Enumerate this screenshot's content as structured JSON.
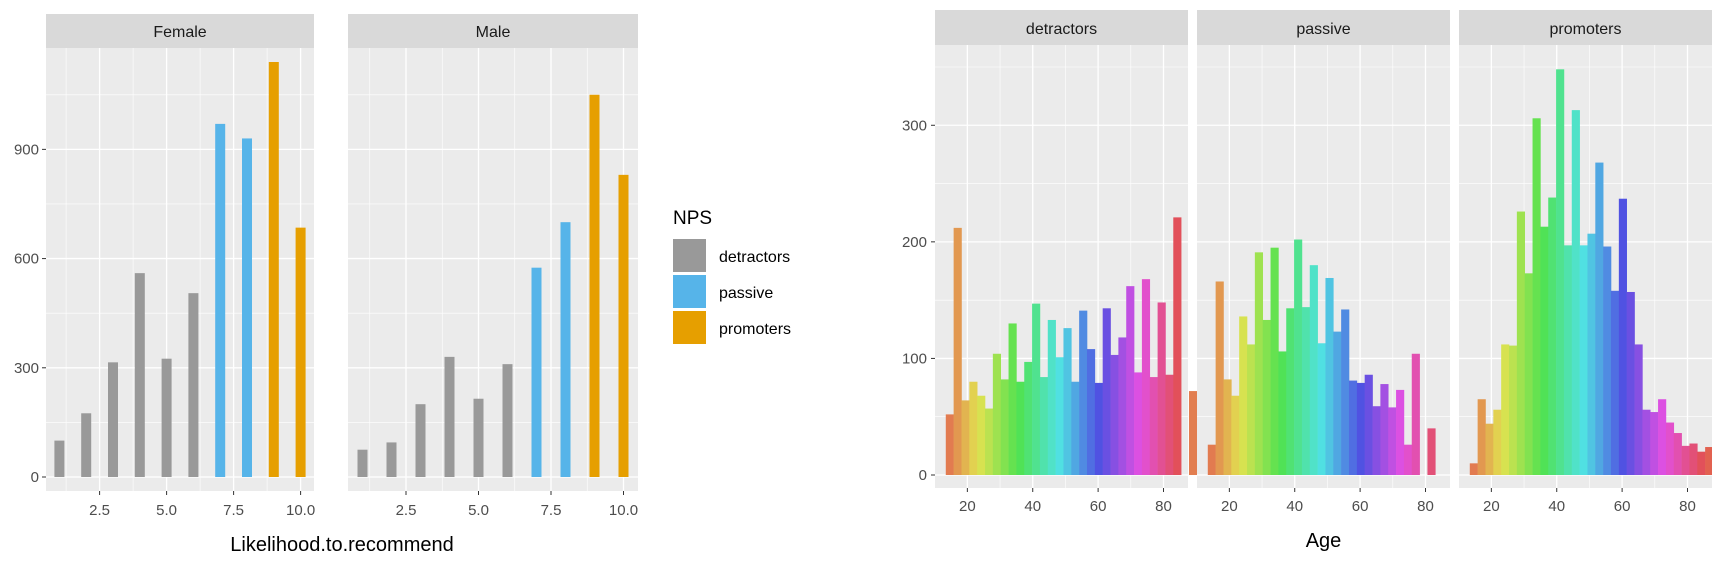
{
  "colors": {
    "panel_bg": "#EBEBEB",
    "strip_bg": "#D9D9D9",
    "grid_major": "#FFFFFF",
    "detractors": "#999999",
    "passive": "#56B4E9",
    "promoters": "#E69F00"
  },
  "chart_data": [
    {
      "type": "bar",
      "facets": [
        "Female",
        "Male"
      ],
      "xlabel": "Likelihood.to.recommend",
      "ylabel": "",
      "xlim": [
        0.5,
        10.5
      ],
      "ylim": [
        0,
        1140
      ],
      "x_ticks": [
        2.5,
        5.0,
        7.5,
        10.0
      ],
      "x_tick_labels": [
        "2.5",
        "5.0",
        "7.5",
        "10.0"
      ],
      "y_ticks": [
        0,
        300,
        600,
        900
      ],
      "y_tick_labels": [
        "0",
        "300",
        "600",
        "900"
      ],
      "grid": true,
      "legend": {
        "title": "NPS",
        "position": "right",
        "entries": [
          {
            "label": "detractors",
            "color": "#999999"
          },
          {
            "label": "passive",
            "color": "#56B4E9"
          },
          {
            "label": "promoters",
            "color": "#E69F00"
          }
        ]
      },
      "x": [
        1,
        2,
        3,
        4,
        5,
        6,
        7,
        8,
        9,
        10
      ],
      "group": [
        "detractors",
        "detractors",
        "detractors",
        "detractors",
        "detractors",
        "detractors",
        "passive",
        "passive",
        "promoters",
        "promoters"
      ],
      "series": [
        {
          "facet": "Female",
          "values": [
            100,
            175,
            315,
            560,
            325,
            505,
            970,
            930,
            1140,
            685
          ]
        },
        {
          "facet": "Male",
          "values": [
            75,
            95,
            200,
            330,
            215,
            310,
            575,
            700,
            1050,
            830
          ]
        }
      ]
    },
    {
      "type": "bar",
      "subtype": "histogram",
      "facets": [
        "detractors",
        "passive",
        "promoters"
      ],
      "xlabel": "Age",
      "ylabel": "",
      "bin_width": 2.4,
      "bin_start": 13.4,
      "xlim": [
        10.1,
        87.5
      ],
      "ylim": [
        0,
        362
      ],
      "x_ticks": [
        20,
        40,
        60,
        80
      ],
      "x_tick_labels": [
        "20",
        "40",
        "60",
        "80"
      ],
      "y_ticks": [
        0,
        100,
        200,
        300
      ],
      "y_tick_labels": [
        "0",
        "100",
        "200",
        "300"
      ],
      "grid": true,
      "fill": "rainbow gradient by age",
      "series": [
        {
          "facet": "detractors",
          "values": [
            52,
            212,
            64,
            80,
            68,
            57,
            104,
            82,
            130,
            80,
            97,
            147,
            84,
            133,
            101,
            126,
            80,
            141,
            108,
            79,
            143,
            103,
            118,
            162,
            88,
            168,
            84,
            148,
            86,
            221,
            0,
            72
          ]
        },
        {
          "facet": "passive",
          "values": [
            26,
            166,
            82,
            68,
            136,
            112,
            191,
            133,
            195,
            106,
            143,
            202,
            144,
            180,
            113,
            169,
            123,
            142,
            81,
            79,
            86,
            59,
            78,
            58,
            73,
            26,
            104,
            0,
            40
          ]
        },
        {
          "facet": "promoters",
          "values": [
            10,
            65,
            44,
            56,
            112,
            111,
            226,
            173,
            306,
            213,
            238,
            348,
            197,
            313,
            197,
            207,
            268,
            196,
            158,
            237,
            157,
            112,
            56,
            54,
            65,
            45,
            36,
            25,
            27,
            20,
            24,
            0,
            12
          ]
        }
      ]
    }
  ]
}
